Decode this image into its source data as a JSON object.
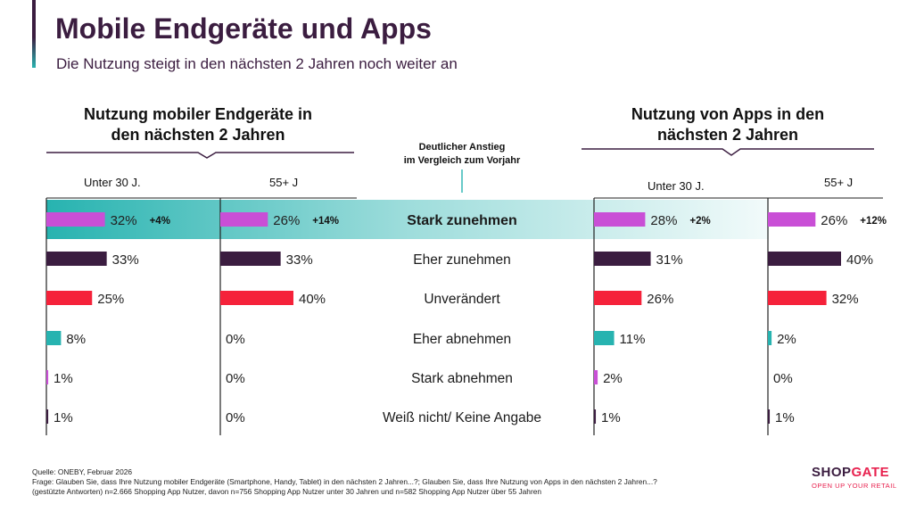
{
  "header": {
    "title": "Mobile Endgeräte und Apps",
    "subtitle": "Die Nutzung steigt in den nächsten 2 Jahren noch weiter an"
  },
  "left_section": {
    "title_line1": "Nutzung mobiler Endgeräte in",
    "title_line2": "den nächsten 2 Jahren"
  },
  "right_section": {
    "title_line1": "Nutzung von Apps in den",
    "title_line2": "nächsten 2 Jahren"
  },
  "middle_header": {
    "line1": "Deutlicher Anstieg",
    "line2": "im Vergleich zum Vorjahr"
  },
  "colors": {
    "row1": "#c94fd6",
    "row2": "#3b1d40",
    "row3": "#f5223a",
    "row4": "#27b3b0",
    "row5": "#c94fd6",
    "row6": "#3b1d40",
    "highlight": "#27b3b0",
    "brand": "#3b1d40",
    "brand_red": "#e8224f"
  },
  "chart_data": {
    "type": "bar",
    "orientation": "horizontal",
    "value_unit": "%",
    "categories": [
      "Stark zunehmen",
      "Eher zunehmen",
      "Unverändert",
      "Eher abnehmen",
      "Stark abnehmen",
      "Weiß nicht/ Keine Angabe"
    ],
    "highlighted_category": "Stark zunehmen",
    "series": [
      {
        "name": "Unter 30 J.",
        "group": "Nutzung mobiler Endgeräte",
        "values": [
          32,
          33,
          25,
          8,
          1,
          1
        ],
        "change": "+4%"
      },
      {
        "name": "55+ J",
        "group": "Nutzung mobiler Endgeräte",
        "values": [
          26,
          33,
          40,
          0,
          0,
          0
        ],
        "change": "+14%"
      },
      {
        "name": "Unter 30 J.",
        "group": "Nutzung von Apps",
        "values": [
          28,
          31,
          26,
          11,
          2,
          1
        ],
        "change": "+2%"
      },
      {
        "name": "55+ J",
        "group": "Nutzung von Apps",
        "values": [
          26,
          40,
          32,
          2,
          0,
          1
        ],
        "change": "+12%"
      }
    ]
  },
  "footer": {
    "source": "Quelle: ONEBY, Februar 2026",
    "question": "Frage: Glauben Sie, dass Ihre Nutzung mobiler Endgeräte (Smartphone, Handy, Tablet) in den nächsten 2 Jahren...?; Glauben Sie, dass Ihre Nutzung von Apps in den nächsten 2 Jahren...?",
    "sample": "(gestützte Antworten) n=2.666 Shopping App Nutzer, davon n=756 Shopping App Nutzer unter 30 Jahren und n=582 Shopping App Nutzer über 55 Jahren"
  },
  "logo": {
    "shop": "SHOP",
    "gate": "GATE",
    "tagline": "OPEN UP YOUR RETAIL"
  }
}
